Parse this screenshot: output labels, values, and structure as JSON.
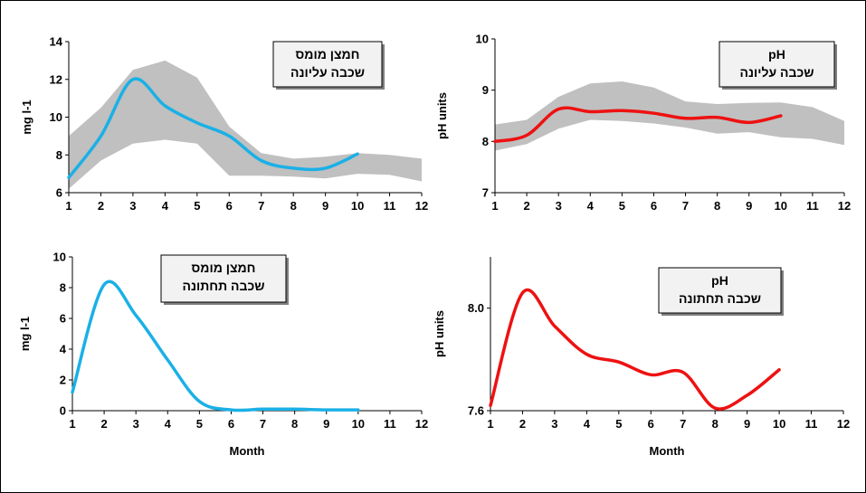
{
  "chart_data": [
    {
      "id": "upper-do",
      "type": "line",
      "title_lines": [
        "חמצן מומס",
        "שכבה עליונה"
      ],
      "ylabel": "mg l-1",
      "xlabel": "",
      "xlim": [
        1,
        12
      ],
      "ylim": [
        6,
        14
      ],
      "yticks": [
        6,
        8,
        10,
        12,
        14
      ],
      "xticks": [
        1,
        2,
        3,
        4,
        5,
        6,
        7,
        8,
        9,
        10,
        11,
        12
      ],
      "grid": false,
      "line_color": "#1ab0e6",
      "band_color": "#c0c0c0",
      "band": {
        "x": [
          1,
          2,
          3,
          4,
          5,
          6,
          7,
          8,
          9,
          10,
          11,
          12
        ],
        "upper": [
          9.0,
          10.5,
          12.5,
          13.0,
          12.1,
          9.5,
          8.1,
          7.8,
          7.9,
          8.1,
          8.0,
          7.8
        ],
        "lower": [
          6.2,
          7.7,
          8.6,
          8.8,
          8.6,
          6.9,
          6.9,
          6.85,
          6.75,
          7.0,
          6.95,
          6.6
        ]
      },
      "series": [
        {
          "x": [
            1,
            2,
            3,
            4,
            5,
            6,
            7,
            8,
            9,
            10
          ],
          "values": [
            6.8,
            9.0,
            12.0,
            10.6,
            9.7,
            9.0,
            7.7,
            7.3,
            7.3,
            8.05
          ]
        }
      ]
    },
    {
      "id": "upper-ph",
      "type": "line",
      "title_lines": [
        "pH",
        "שכבה עליונה"
      ],
      "ylabel": "pH units",
      "xlabel": "",
      "xlim": [
        1,
        12
      ],
      "ylim": [
        7,
        10
      ],
      "yticks": [
        7,
        8,
        9,
        10
      ],
      "xticks": [
        1,
        2,
        3,
        4,
        5,
        6,
        7,
        8,
        9,
        10,
        11,
        12
      ],
      "grid": false,
      "line_color": "#ee1111",
      "band_color": "#c0c0c0",
      "band": {
        "x": [
          1,
          2,
          3,
          4,
          5,
          6,
          7,
          8,
          9,
          10,
          11,
          12
        ],
        "upper": [
          8.33,
          8.42,
          8.87,
          9.13,
          9.17,
          9.05,
          8.78,
          8.73,
          8.75,
          8.76,
          8.67,
          8.4
        ],
        "lower": [
          7.82,
          7.95,
          8.25,
          8.42,
          8.4,
          8.35,
          8.27,
          8.15,
          8.18,
          8.08,
          8.05,
          7.93
        ]
      },
      "series": [
        {
          "x": [
            1,
            2,
            3,
            4,
            5,
            6,
            7,
            8,
            9,
            10
          ],
          "values": [
            8.0,
            8.12,
            8.63,
            8.58,
            8.6,
            8.55,
            8.45,
            8.47,
            8.37,
            8.5
          ]
        }
      ]
    },
    {
      "id": "lower-do",
      "type": "line",
      "title_lines": [
        "חמצן מומס",
        "שכבה תחתונה"
      ],
      "ylabel": "mg l-1",
      "xlabel": "Month",
      "xlim": [
        1,
        12
      ],
      "ylim": [
        0,
        10
      ],
      "yticks": [
        0,
        2,
        4,
        6,
        8,
        10
      ],
      "xticks": [
        1,
        2,
        3,
        4,
        5,
        6,
        7,
        8,
        9,
        10,
        11,
        12
      ],
      "grid": false,
      "line_color": "#1ab0e6",
      "series": [
        {
          "x": [
            1,
            2,
            3,
            4,
            5,
            6,
            7,
            8,
            9,
            10
          ],
          "values": [
            1.2,
            8.2,
            6.2,
            3.3,
            0.6,
            0.05,
            0.1,
            0.1,
            0.05,
            0.05
          ]
        }
      ]
    },
    {
      "id": "lower-ph",
      "type": "line",
      "title_lines": [
        "pH",
        "שכבה תחתונה"
      ],
      "ylabel": "pH units",
      "xlabel": "Month",
      "xlim": [
        1,
        12
      ],
      "ylim": [
        7.6,
        8.2
      ],
      "yticks": [
        7.6,
        8.0
      ],
      "ytick_labels": [
        "7.6",
        "8.0"
      ],
      "xticks": [
        1,
        2,
        3,
        4,
        5,
        6,
        7,
        8,
        9,
        10,
        11,
        12
      ],
      "grid": false,
      "line_color": "#ee1111",
      "series": [
        {
          "x": [
            1,
            2,
            3,
            4,
            5,
            6,
            7,
            8,
            9,
            10
          ],
          "values": [
            7.62,
            8.06,
            7.93,
            7.82,
            7.79,
            7.74,
            7.75,
            7.61,
            7.66,
            7.76
          ]
        }
      ]
    }
  ]
}
